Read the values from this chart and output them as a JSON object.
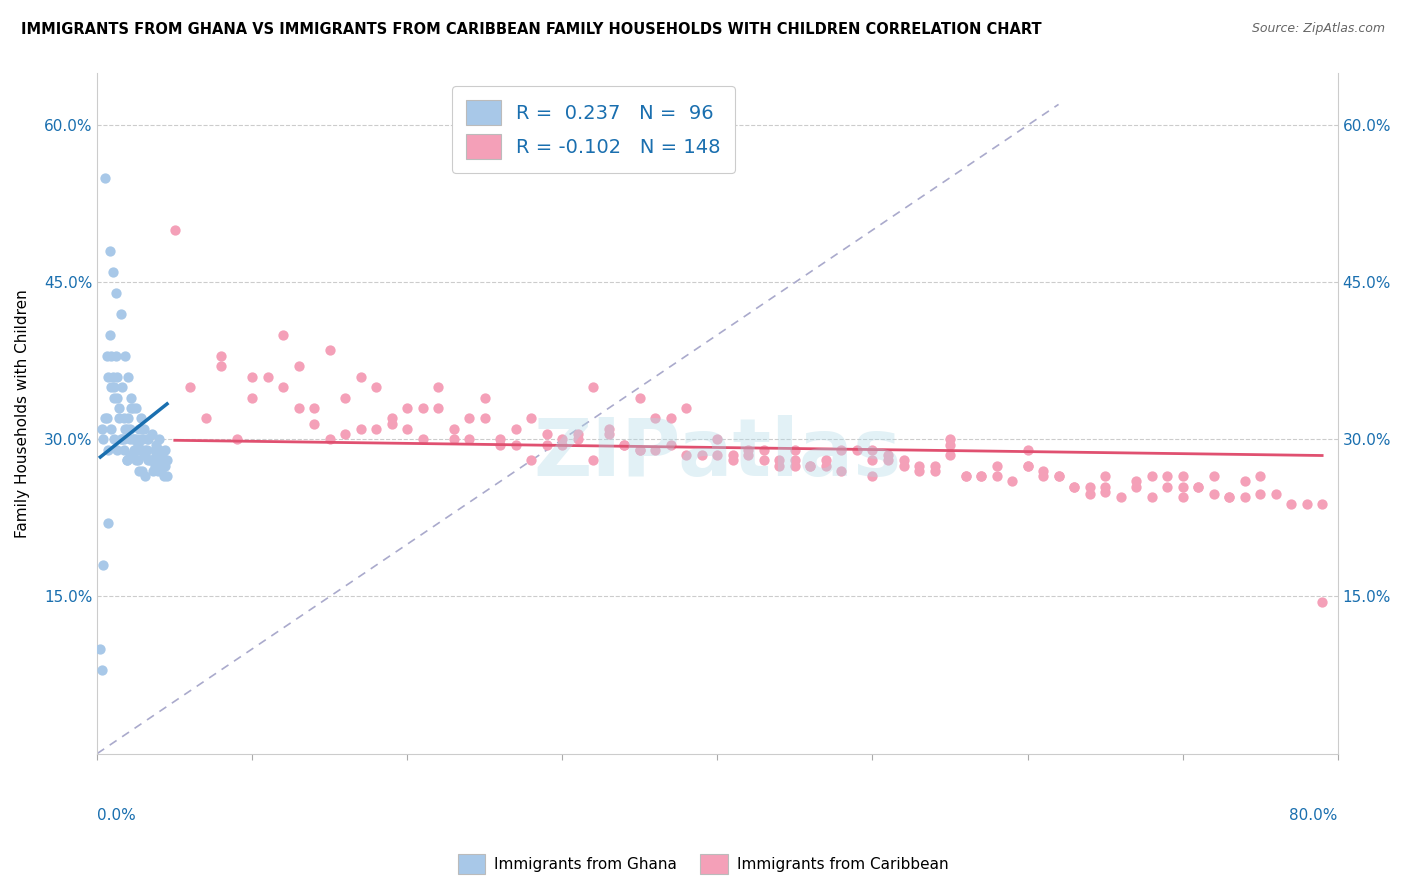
{
  "title": "IMMIGRANTS FROM GHANA VS IMMIGRANTS FROM CARIBBEAN FAMILY HOUSEHOLDS WITH CHILDREN CORRELATION CHART",
  "source": "Source: ZipAtlas.com",
  "ylabel": "Family Households with Children",
  "ghana_color": "#a8c8e8",
  "caribbean_color": "#f4a0b8",
  "ghana_line_color": "#1a6faf",
  "caribbean_line_color": "#e05070",
  "diagonal_color": "#aaaacc",
  "ghana_r": 0.237,
  "caribbean_r": -0.102,
  "xmin": 0.0,
  "xmax": 0.8,
  "ymin": 0.0,
  "ymax": 0.65,
  "ghana_scatter_x": [
    0.002,
    0.003,
    0.004,
    0.005,
    0.006,
    0.006,
    0.007,
    0.007,
    0.008,
    0.008,
    0.009,
    0.009,
    0.01,
    0.01,
    0.011,
    0.011,
    0.012,
    0.012,
    0.013,
    0.013,
    0.014,
    0.014,
    0.015,
    0.016,
    0.016,
    0.017,
    0.017,
    0.018,
    0.018,
    0.019,
    0.019,
    0.02,
    0.02,
    0.021,
    0.021,
    0.022,
    0.022,
    0.023,
    0.023,
    0.024,
    0.024,
    0.025,
    0.025,
    0.026,
    0.026,
    0.027,
    0.027,
    0.028,
    0.028,
    0.029,
    0.029,
    0.03,
    0.03,
    0.031,
    0.031,
    0.032,
    0.032,
    0.033,
    0.033,
    0.034,
    0.035,
    0.035,
    0.036,
    0.036,
    0.037,
    0.037,
    0.038,
    0.038,
    0.039,
    0.04,
    0.04,
    0.041,
    0.041,
    0.042,
    0.042,
    0.043,
    0.044,
    0.044,
    0.045,
    0.045,
    0.003,
    0.004,
    0.005,
    0.007,
    0.009,
    0.011,
    0.013,
    0.015,
    0.017,
    0.019,
    0.021,
    0.023,
    0.025,
    0.027,
    0.029,
    0.031
  ],
  "ghana_scatter_y": [
    0.1,
    0.08,
    0.18,
    0.55,
    0.32,
    0.38,
    0.22,
    0.36,
    0.48,
    0.4,
    0.35,
    0.38,
    0.46,
    0.36,
    0.34,
    0.35,
    0.44,
    0.38,
    0.36,
    0.34,
    0.32,
    0.33,
    0.42,
    0.3,
    0.35,
    0.3,
    0.32,
    0.38,
    0.31,
    0.28,
    0.31,
    0.36,
    0.32,
    0.31,
    0.3,
    0.34,
    0.33,
    0.33,
    0.3,
    0.3,
    0.29,
    0.33,
    0.3,
    0.28,
    0.295,
    0.31,
    0.29,
    0.32,
    0.29,
    0.3,
    0.3,
    0.31,
    0.285,
    0.29,
    0.285,
    0.3,
    0.29,
    0.3,
    0.28,
    0.28,
    0.305,
    0.28,
    0.27,
    0.28,
    0.275,
    0.29,
    0.295,
    0.285,
    0.27,
    0.29,
    0.3,
    0.28,
    0.27,
    0.285,
    0.275,
    0.265,
    0.29,
    0.275,
    0.28,
    0.265,
    0.31,
    0.3,
    0.32,
    0.29,
    0.31,
    0.3,
    0.29,
    0.3,
    0.29,
    0.28,
    0.285,
    0.285,
    0.28,
    0.27,
    0.27,
    0.265
  ],
  "caribbean_scatter_x": [
    0.05,
    0.06,
    0.07,
    0.08,
    0.08,
    0.09,
    0.1,
    0.1,
    0.11,
    0.12,
    0.12,
    0.13,
    0.13,
    0.14,
    0.14,
    0.15,
    0.15,
    0.16,
    0.16,
    0.17,
    0.17,
    0.18,
    0.18,
    0.19,
    0.19,
    0.2,
    0.2,
    0.21,
    0.21,
    0.22,
    0.22,
    0.23,
    0.23,
    0.24,
    0.24,
    0.25,
    0.25,
    0.26,
    0.26,
    0.27,
    0.27,
    0.28,
    0.28,
    0.29,
    0.29,
    0.3,
    0.3,
    0.31,
    0.31,
    0.32,
    0.32,
    0.33,
    0.33,
    0.34,
    0.34,
    0.35,
    0.35,
    0.36,
    0.36,
    0.37,
    0.37,
    0.38,
    0.38,
    0.39,
    0.4,
    0.4,
    0.41,
    0.41,
    0.42,
    0.42,
    0.43,
    0.43,
    0.44,
    0.44,
    0.45,
    0.45,
    0.46,
    0.46,
    0.47,
    0.47,
    0.48,
    0.48,
    0.49,
    0.5,
    0.5,
    0.51,
    0.51,
    0.52,
    0.52,
    0.53,
    0.53,
    0.54,
    0.54,
    0.55,
    0.55,
    0.56,
    0.56,
    0.57,
    0.57,
    0.58,
    0.58,
    0.59,
    0.6,
    0.6,
    0.61,
    0.61,
    0.62,
    0.62,
    0.63,
    0.63,
    0.64,
    0.64,
    0.65,
    0.65,
    0.66,
    0.67,
    0.67,
    0.68,
    0.68,
    0.69,
    0.69,
    0.7,
    0.7,
    0.71,
    0.71,
    0.72,
    0.72,
    0.73,
    0.73,
    0.74,
    0.74,
    0.75,
    0.75,
    0.76,
    0.77,
    0.78,
    0.79,
    0.79,
    0.5,
    0.6,
    0.55,
    0.45,
    0.7,
    0.65,
    0.35
  ],
  "caribbean_scatter_y": [
    0.5,
    0.35,
    0.32,
    0.38,
    0.37,
    0.3,
    0.36,
    0.34,
    0.36,
    0.4,
    0.35,
    0.37,
    0.33,
    0.33,
    0.315,
    0.385,
    0.3,
    0.34,
    0.305,
    0.31,
    0.36,
    0.35,
    0.31,
    0.32,
    0.315,
    0.31,
    0.33,
    0.33,
    0.3,
    0.35,
    0.33,
    0.31,
    0.3,
    0.32,
    0.3,
    0.34,
    0.32,
    0.3,
    0.295,
    0.31,
    0.295,
    0.32,
    0.28,
    0.295,
    0.305,
    0.3,
    0.295,
    0.305,
    0.3,
    0.35,
    0.28,
    0.31,
    0.305,
    0.295,
    0.295,
    0.34,
    0.29,
    0.29,
    0.32,
    0.295,
    0.32,
    0.33,
    0.285,
    0.285,
    0.3,
    0.285,
    0.28,
    0.285,
    0.29,
    0.285,
    0.28,
    0.29,
    0.275,
    0.28,
    0.28,
    0.275,
    0.275,
    0.275,
    0.275,
    0.28,
    0.27,
    0.29,
    0.29,
    0.29,
    0.28,
    0.28,
    0.285,
    0.275,
    0.28,
    0.275,
    0.27,
    0.27,
    0.275,
    0.3,
    0.285,
    0.265,
    0.265,
    0.265,
    0.265,
    0.275,
    0.265,
    0.26,
    0.29,
    0.275,
    0.27,
    0.265,
    0.265,
    0.265,
    0.255,
    0.255,
    0.248,
    0.255,
    0.255,
    0.25,
    0.245,
    0.26,
    0.255,
    0.265,
    0.245,
    0.265,
    0.255,
    0.245,
    0.265,
    0.255,
    0.255,
    0.248,
    0.265,
    0.245,
    0.245,
    0.26,
    0.245,
    0.248,
    0.265,
    0.248,
    0.238,
    0.238,
    0.238,
    0.145,
    0.265,
    0.275,
    0.295,
    0.29,
    0.255,
    0.265,
    0.29
  ]
}
